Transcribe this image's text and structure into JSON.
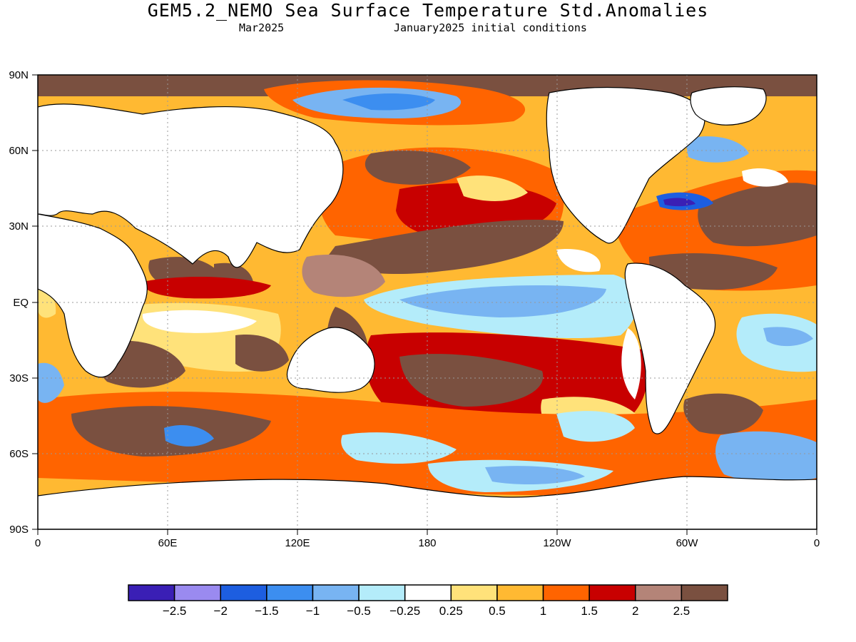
{
  "header": {
    "title": "GEM5.2_NEMO Sea Surface Temperature Std.Anomalies",
    "valid_month": "Mar2025",
    "init_conditions": "January2025 initial conditions"
  },
  "map": {
    "projection": "cylindrical equidistant, 0° to 360° longitude (Pacific-centred)",
    "lat_ticks": [
      "90N",
      "60N",
      "30N",
      "EQ",
      "30S",
      "60S",
      "90S"
    ],
    "lon_ticks": [
      "0",
      "60E",
      "120E",
      "180",
      "120W",
      "60W",
      "0"
    ],
    "grid": "dotted"
  },
  "colorbar": {
    "colors": [
      "#3a1fb5",
      "#9a8af0",
      "#1d5ee0",
      "#3c8ef0",
      "#78b4f2",
      "#b4ecfa",
      "#ffffff",
      "#ffe27a",
      "#ffb932",
      "#ff6400",
      "#c80000",
      "#b48478",
      "#7a5040"
    ],
    "labels": [
      "-2.5",
      "-2",
      "-1.5",
      "-1",
      "-0.5",
      "-0.25",
      "0.25",
      "0.5",
      "1",
      "1.5",
      "2",
      "2.5"
    ]
  },
  "colors": {
    "land": "#ffffff",
    "missing": "#7a5040"
  }
}
